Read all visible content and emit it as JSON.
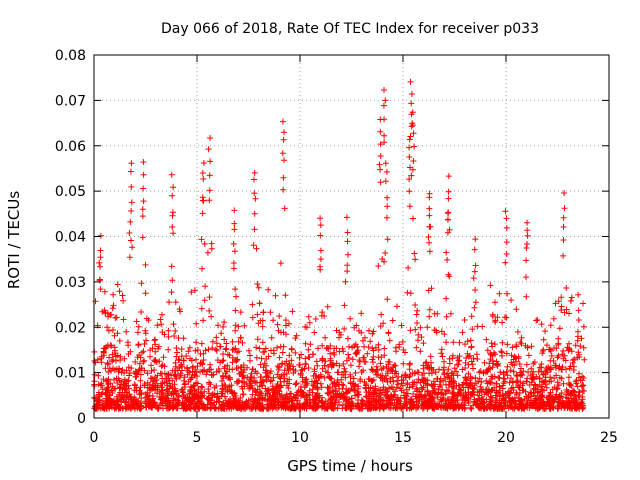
{
  "chart_data": {
    "type": "scatter",
    "title": "Day 066 of 2018, Rate Of TEC Index for receiver p033",
    "xlabel": "GPS time / hours",
    "ylabel": "ROTI / TECUs",
    "xlim": [
      0,
      25
    ],
    "ylim": [
      0,
      0.08
    ],
    "x_ticks": [
      0,
      5,
      10,
      15,
      20,
      25
    ],
    "x_tick_labels": [
      "0",
      "5",
      "10",
      "15",
      "20",
      "25"
    ],
    "y_ticks": [
      0,
      0.01,
      0.02,
      0.03,
      0.04,
      0.05,
      0.06,
      0.07,
      0.08
    ],
    "y_tick_labels": [
      "0",
      "0.01",
      "0.02",
      "0.03",
      "0.04",
      "0.05",
      "0.06",
      "0.07",
      "0.08"
    ],
    "grid": true,
    "marker": "+",
    "marker_color": "#ff0000",
    "series": [
      {
        "name": "ROTI",
        "x_range": [
          0,
          23.8
        ],
        "typical_range": [
          0.002,
          0.03
        ],
        "peaks": [
          {
            "x": 0.3,
            "y": 0.041
          },
          {
            "x": 1.8,
            "y": 0.057
          },
          {
            "x": 2.4,
            "y": 0.057
          },
          {
            "x": 3.8,
            "y": 0.054
          },
          {
            "x": 5.3,
            "y": 0.058
          },
          {
            "x": 5.6,
            "y": 0.062
          },
          {
            "x": 6.8,
            "y": 0.047
          },
          {
            "x": 7.8,
            "y": 0.056
          },
          {
            "x": 9.2,
            "y": 0.067
          },
          {
            "x": 11.0,
            "y": 0.046
          },
          {
            "x": 12.3,
            "y": 0.045
          },
          {
            "x": 13.9,
            "y": 0.066
          },
          {
            "x": 14.1,
            "y": 0.074
          },
          {
            "x": 14.2,
            "y": 0.058
          },
          {
            "x": 15.3,
            "y": 0.063
          },
          {
            "x": 15.4,
            "y": 0.075
          },
          {
            "x": 15.5,
            "y": 0.068
          },
          {
            "x": 16.3,
            "y": 0.05
          },
          {
            "x": 17.2,
            "y": 0.054
          },
          {
            "x": 18.5,
            "y": 0.04
          },
          {
            "x": 20.0,
            "y": 0.047
          },
          {
            "x": 21.0,
            "y": 0.045
          },
          {
            "x": 22.8,
            "y": 0.05
          },
          {
            "x": 23.5,
            "y": 0.028
          }
        ]
      }
    ]
  }
}
